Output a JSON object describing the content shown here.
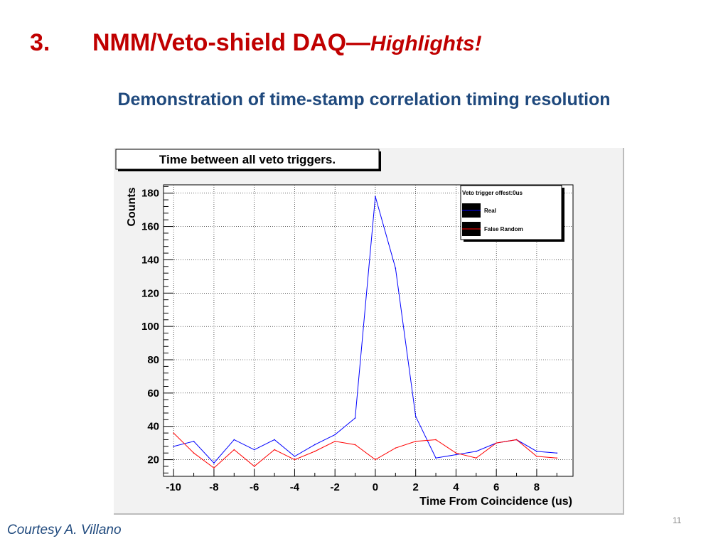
{
  "slide": {
    "number": "3.",
    "title": "NMM/Veto-shield DAQ—",
    "title_highlight": "Highlights!",
    "subtitle": "Demonstration of time-stamp correlation timing resolution",
    "credit": "Courtesy A. Villano",
    "page_number": "11"
  },
  "colors": {
    "title_red": "#c00000",
    "subtitle_blue": "#1f497d",
    "real_series": "#0000ff",
    "false_random_series": "#ff0000"
  },
  "chart_data": {
    "type": "line",
    "title": "Time between all veto triggers.",
    "xlabel": "Time From Coincidence (us)",
    "ylabel": "Counts",
    "xlim": [
      -10.5,
      9.8
    ],
    "ylim": [
      10,
      185
    ],
    "x_ticks": [
      -10,
      -8,
      -6,
      -4,
      -2,
      0,
      2,
      4,
      6,
      8
    ],
    "y_ticks": [
      20,
      40,
      60,
      80,
      100,
      120,
      140,
      160,
      180
    ],
    "grid": true,
    "legend": {
      "title": "Veto trigger offest:0us",
      "position": "top-right"
    },
    "x": [
      -10,
      -9,
      -8,
      -7,
      -6,
      -5,
      -4,
      -3,
      -2,
      -1,
      0,
      1,
      2,
      3,
      4,
      5,
      6,
      7,
      8,
      9
    ],
    "series": [
      {
        "name": "Real",
        "color": "#0000ff",
        "values": [
          28,
          31,
          18,
          32,
          26,
          32,
          22,
          29,
          35,
          45,
          178,
          135,
          46,
          21,
          23,
          25,
          30,
          32,
          25,
          24
        ]
      },
      {
        "name": "False Random",
        "color": "#ff0000",
        "values": [
          36,
          24,
          15,
          26,
          16,
          26,
          20,
          25,
          31,
          29,
          20,
          27,
          31,
          32,
          24,
          21,
          30,
          32,
          22,
          21
        ]
      }
    ]
  }
}
